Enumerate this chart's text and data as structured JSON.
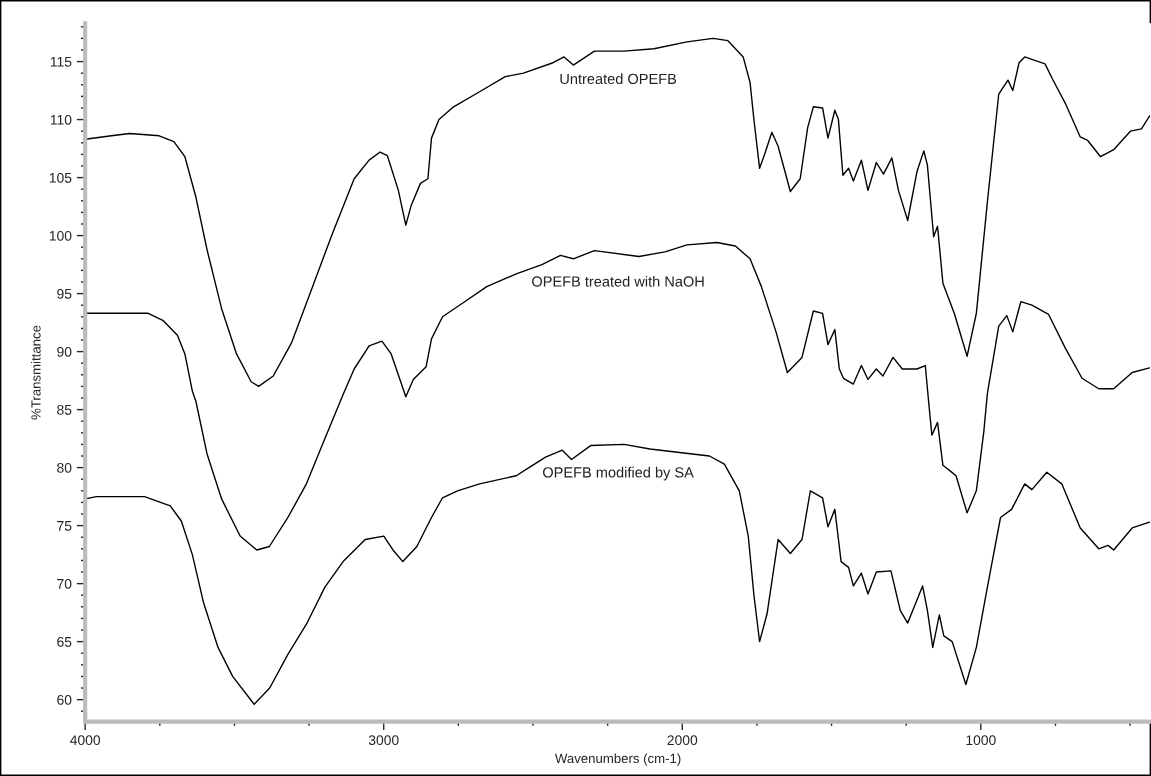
{
  "chart_data": {
    "type": "line",
    "xlabel": "Wavenumbers (cm-1)",
    "ylabel": "%Transmittance",
    "xlim": [
      4000,
      430
    ],
    "ylim": [
      58.1,
      118.3
    ],
    "xticks": [
      4000,
      {
        "value": 3750,
        "label": null
      },
      {
        "value": 3500,
        "label": null
      },
      {
        "value": 3250,
        "label": null
      },
      3000,
      {
        "value": 2750,
        "label": null
      },
      {
        "value": 2500,
        "label": null
      },
      {
        "value": 2250,
        "label": null
      },
      2000,
      {
        "value": 1750,
        "label": null
      },
      {
        "value": 1500,
        "label": null
      },
      {
        "value": 1250,
        "label": null
      },
      1000,
      {
        "value": 750,
        "label": null
      },
      {
        "value": 500,
        "label": null
      }
    ],
    "yticks": [
      {
        "value": 59,
        "label": null
      },
      60,
      {
        "value": 61,
        "label": null
      },
      {
        "value": 62,
        "label": null
      },
      {
        "value": 63,
        "label": null
      },
      {
        "value": 64,
        "label": null
      },
      65,
      {
        "value": 66,
        "label": null
      },
      {
        "value": 67,
        "label": null
      },
      {
        "value": 68,
        "label": null
      },
      {
        "value": 69,
        "label": null
      },
      70,
      {
        "value": 71,
        "label": null
      },
      {
        "value": 72,
        "label": null
      },
      {
        "value": 73,
        "label": null
      },
      {
        "value": 74,
        "label": null
      },
      75,
      {
        "value": 76,
        "label": null
      },
      {
        "value": 77,
        "label": null
      },
      {
        "value": 78,
        "label": null
      },
      {
        "value": 79,
        "label": null
      },
      80,
      {
        "value": 81,
        "label": null
      },
      {
        "value": 82,
        "label": null
      },
      {
        "value": 83,
        "label": null
      },
      {
        "value": 84,
        "label": null
      },
      85,
      {
        "value": 86,
        "label": null
      },
      {
        "value": 87,
        "label": null
      },
      {
        "value": 88,
        "label": null
      },
      {
        "value": 89,
        "label": null
      },
      90,
      {
        "value": 91,
        "label": null
      },
      {
        "value": 92,
        "label": null
      },
      {
        "value": 93,
        "label": null
      },
      {
        "value": 94,
        "label": null
      },
      95,
      {
        "value": 96,
        "label": null
      },
      {
        "value": 97,
        "label": null
      },
      {
        "value": 98,
        "label": null
      },
      {
        "value": 99,
        "label": null
      },
      100,
      {
        "value": 101,
        "label": null
      },
      {
        "value": 102,
        "label": null
      },
      {
        "value": 103,
        "label": null
      },
      {
        "value": 104,
        "label": null
      },
      105,
      {
        "value": 106,
        "label": null
      },
      {
        "value": 107,
        "label": null
      },
      {
        "value": 108,
        "label": null
      },
      {
        "value": 109,
        "label": null
      },
      110,
      {
        "value": 111,
        "label": null
      },
      {
        "value": 112,
        "label": null
      },
      {
        "value": 113,
        "label": null
      },
      {
        "value": 114,
        "label": null
      },
      115,
      {
        "value": 116,
        "label": null
      },
      {
        "value": 117,
        "label": null
      },
      {
        "value": 118,
        "label": null
      }
    ],
    "grid": false,
    "legend": false,
    "marker": "none",
    "line_style": "solid",
    "series": [
      {
        "name": "Untreated OPEFB",
        "color": "#000000",
        "x": [
          4000,
          3912,
          3851,
          3752,
          3703,
          3666,
          3629,
          3592,
          3543,
          3493,
          3444,
          3419,
          3370,
          3308,
          3234,
          3173,
          3099,
          3049,
          3012,
          2988,
          2951,
          2926,
          2908,
          2877,
          2852,
          2840,
          2815,
          2766,
          2679,
          2593,
          2532,
          2433,
          2396,
          2365,
          2294,
          2195,
          2095,
          1984,
          1897,
          1847,
          1796,
          1773,
          1760,
          1741,
          1723,
          1700,
          1679,
          1638,
          1605,
          1580,
          1561,
          1530,
          1512,
          1489,
          1477,
          1462,
          1443,
          1427,
          1400,
          1378,
          1350,
          1326,
          1298,
          1276,
          1245,
          1214,
          1191,
          1179,
          1158,
          1145,
          1127,
          1089,
          1046,
          1015,
          978,
          940,
          909,
          893,
          872,
          853,
          785,
          760,
          717,
          667,
          642,
          599,
          555,
          499,
          462,
          435
        ],
        "values": [
          108.3,
          108.6,
          108.8,
          108.6,
          108.1,
          106.8,
          103.3,
          98.8,
          93.7,
          89.8,
          87.4,
          87.0,
          87.9,
          90.8,
          95.9,
          100.1,
          104.9,
          106.5,
          107.2,
          106.9,
          103.9,
          100.9,
          102.6,
          104.5,
          104.9,
          108.4,
          110.0,
          111.1,
          112.4,
          113.7,
          114.0,
          114.9,
          115.4,
          114.7,
          115.9,
          115.9,
          116.1,
          116.7,
          117.0,
          116.8,
          115.4,
          113.2,
          110.0,
          105.8,
          107.1,
          108.9,
          107.7,
          103.8,
          104.9,
          109.3,
          111.1,
          111.0,
          108.4,
          110.8,
          110.0,
          105.2,
          105.8,
          104.7,
          106.5,
          103.9,
          106.3,
          105.3,
          106.7,
          103.9,
          101.3,
          105.5,
          107.3,
          106.1,
          99.9,
          100.8,
          95.9,
          93.3,
          89.6,
          93.3,
          102.9,
          112.2,
          113.4,
          112.5,
          114.9,
          115.4,
          114.8,
          113.5,
          111.4,
          108.5,
          108.2,
          106.8,
          107.4,
          109.0,
          109.2,
          110.3
        ]
      },
      {
        "name": "OPEFB treated with NaOH",
        "color": "#000000",
        "x": [
          4000,
          3912,
          3789,
          3740,
          3691,
          3666,
          3641,
          3629,
          3592,
          3543,
          3481,
          3425,
          3383,
          3321,
          3259,
          3197,
          3136,
          3099,
          3049,
          3006,
          2975,
          2926,
          2901,
          2858,
          2840,
          2803,
          2729,
          2655,
          2556,
          2470,
          2408,
          2365,
          2294,
          2145,
          2058,
          1984,
          1884,
          1822,
          1773,
          1735,
          1686,
          1648,
          1599,
          1561,
          1530,
          1512,
          1489,
          1474,
          1460,
          1427,
          1400,
          1378,
          1350,
          1328,
          1294,
          1263,
          1214,
          1186,
          1176,
          1164,
          1145,
          1127,
          1102,
          1083,
          1046,
          1015,
          990,
          978,
          940,
          913,
          893,
          866,
          829,
          773,
          717,
          661,
          605,
          555,
          493,
          435
        ],
        "values": [
          93.3,
          93.3,
          93.3,
          92.7,
          91.4,
          89.8,
          86.6,
          85.7,
          81.2,
          77.3,
          74.1,
          72.9,
          73.2,
          75.7,
          78.6,
          82.5,
          86.3,
          88.5,
          90.5,
          90.9,
          89.8,
          86.1,
          87.6,
          88.7,
          91.1,
          93.0,
          94.3,
          95.6,
          96.7,
          97.5,
          98.3,
          98.0,
          98.7,
          98.2,
          98.6,
          99.2,
          99.4,
          99.1,
          98.0,
          95.6,
          91.7,
          88.2,
          89.5,
          93.5,
          93.3,
          90.6,
          91.9,
          88.5,
          87.7,
          87.2,
          88.8,
          87.6,
          88.5,
          87.9,
          89.5,
          88.5,
          88.5,
          88.8,
          86.0,
          82.8,
          83.9,
          80.2,
          79.7,
          79.3,
          76.1,
          78.0,
          83.1,
          86.4,
          92.2,
          93.1,
          91.7,
          94.3,
          94.0,
          93.2,
          90.3,
          87.7,
          86.8,
          86.8,
          88.2,
          88.6
        ]
      },
      {
        "name": "OPEFB modified by SA",
        "color": "#000000",
        "x": [
          4000,
          3962,
          3801,
          3715,
          3678,
          3641,
          3604,
          3555,
          3506,
          3434,
          3382,
          3321,
          3259,
          3197,
          3136,
          3062,
          3000,
          2969,
          2936,
          2889,
          2840,
          2803,
          2753,
          2679,
          2556,
          2507,
          2458,
          2402,
          2371,
          2307,
          2195,
          2108,
          2009,
          1909,
          1859,
          1809,
          1779,
          1760,
          1741,
          1716,
          1679,
          1638,
          1599,
          1571,
          1530,
          1512,
          1489,
          1468,
          1443,
          1427,
          1400,
          1378,
          1350,
          1301,
          1270,
          1245,
          1195,
          1179,
          1161,
          1139,
          1124,
          1096,
          1050,
          1015,
          978,
          934,
          897,
          853,
          829,
          779,
          729,
          667,
          605,
          574,
          555,
          493,
          435
        ],
        "values": [
          77.3,
          77.5,
          77.5,
          76.7,
          75.4,
          72.5,
          68.4,
          64.5,
          62.0,
          59.6,
          61.0,
          63.9,
          66.5,
          69.7,
          71.9,
          73.8,
          74.1,
          72.9,
          71.9,
          73.2,
          75.7,
          77.4,
          78.0,
          78.6,
          79.3,
          80.1,
          80.9,
          81.5,
          80.7,
          81.9,
          82.0,
          81.6,
          81.3,
          81.0,
          80.3,
          78.0,
          74.1,
          69.0,
          65.0,
          67.4,
          73.8,
          72.6,
          73.8,
          78.0,
          77.4,
          74.9,
          76.4,
          71.9,
          71.4,
          69.8,
          70.9,
          69.1,
          71.0,
          71.1,
          67.7,
          66.6,
          69.8,
          67.7,
          64.5,
          67.3,
          65.5,
          65.0,
          61.3,
          64.5,
          69.7,
          75.7,
          76.4,
          78.6,
          78.1,
          79.6,
          78.6,
          74.8,
          73.0,
          73.3,
          72.9,
          74.8,
          75.3
        ]
      }
    ]
  }
}
